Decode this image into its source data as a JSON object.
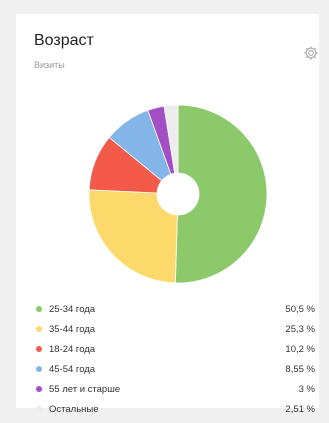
{
  "widget": {
    "title": "Возраст",
    "subtitle": "Визиты",
    "settings_icon": "gear-icon"
  },
  "chart_data": {
    "type": "pie",
    "title": "Возраст",
    "subtitle": "Визиты",
    "donut": true,
    "legend_position": "bottom",
    "slices": [
      {
        "label": "25-34 года",
        "value": 50.5,
        "display": "50,5 %",
        "color": "#8cc96b"
      },
      {
        "label": "35-44 года",
        "value": 25.3,
        "display": "25,3 %",
        "color": "#fcd96a"
      },
      {
        "label": "18-24 года",
        "value": 10.2,
        "display": "10,2 %",
        "color": "#f35a4a"
      },
      {
        "label": "45-54 года",
        "value": 8.55,
        "display": "8,55 %",
        "color": "#83b5e9"
      },
      {
        "label": "55 лет и старше",
        "value": 3,
        "display": "3 %",
        "color": "#a24fc6"
      },
      {
        "label": "Остальные",
        "value": 2.51,
        "display": "2,51 %",
        "color": "#ececec"
      }
    ]
  }
}
